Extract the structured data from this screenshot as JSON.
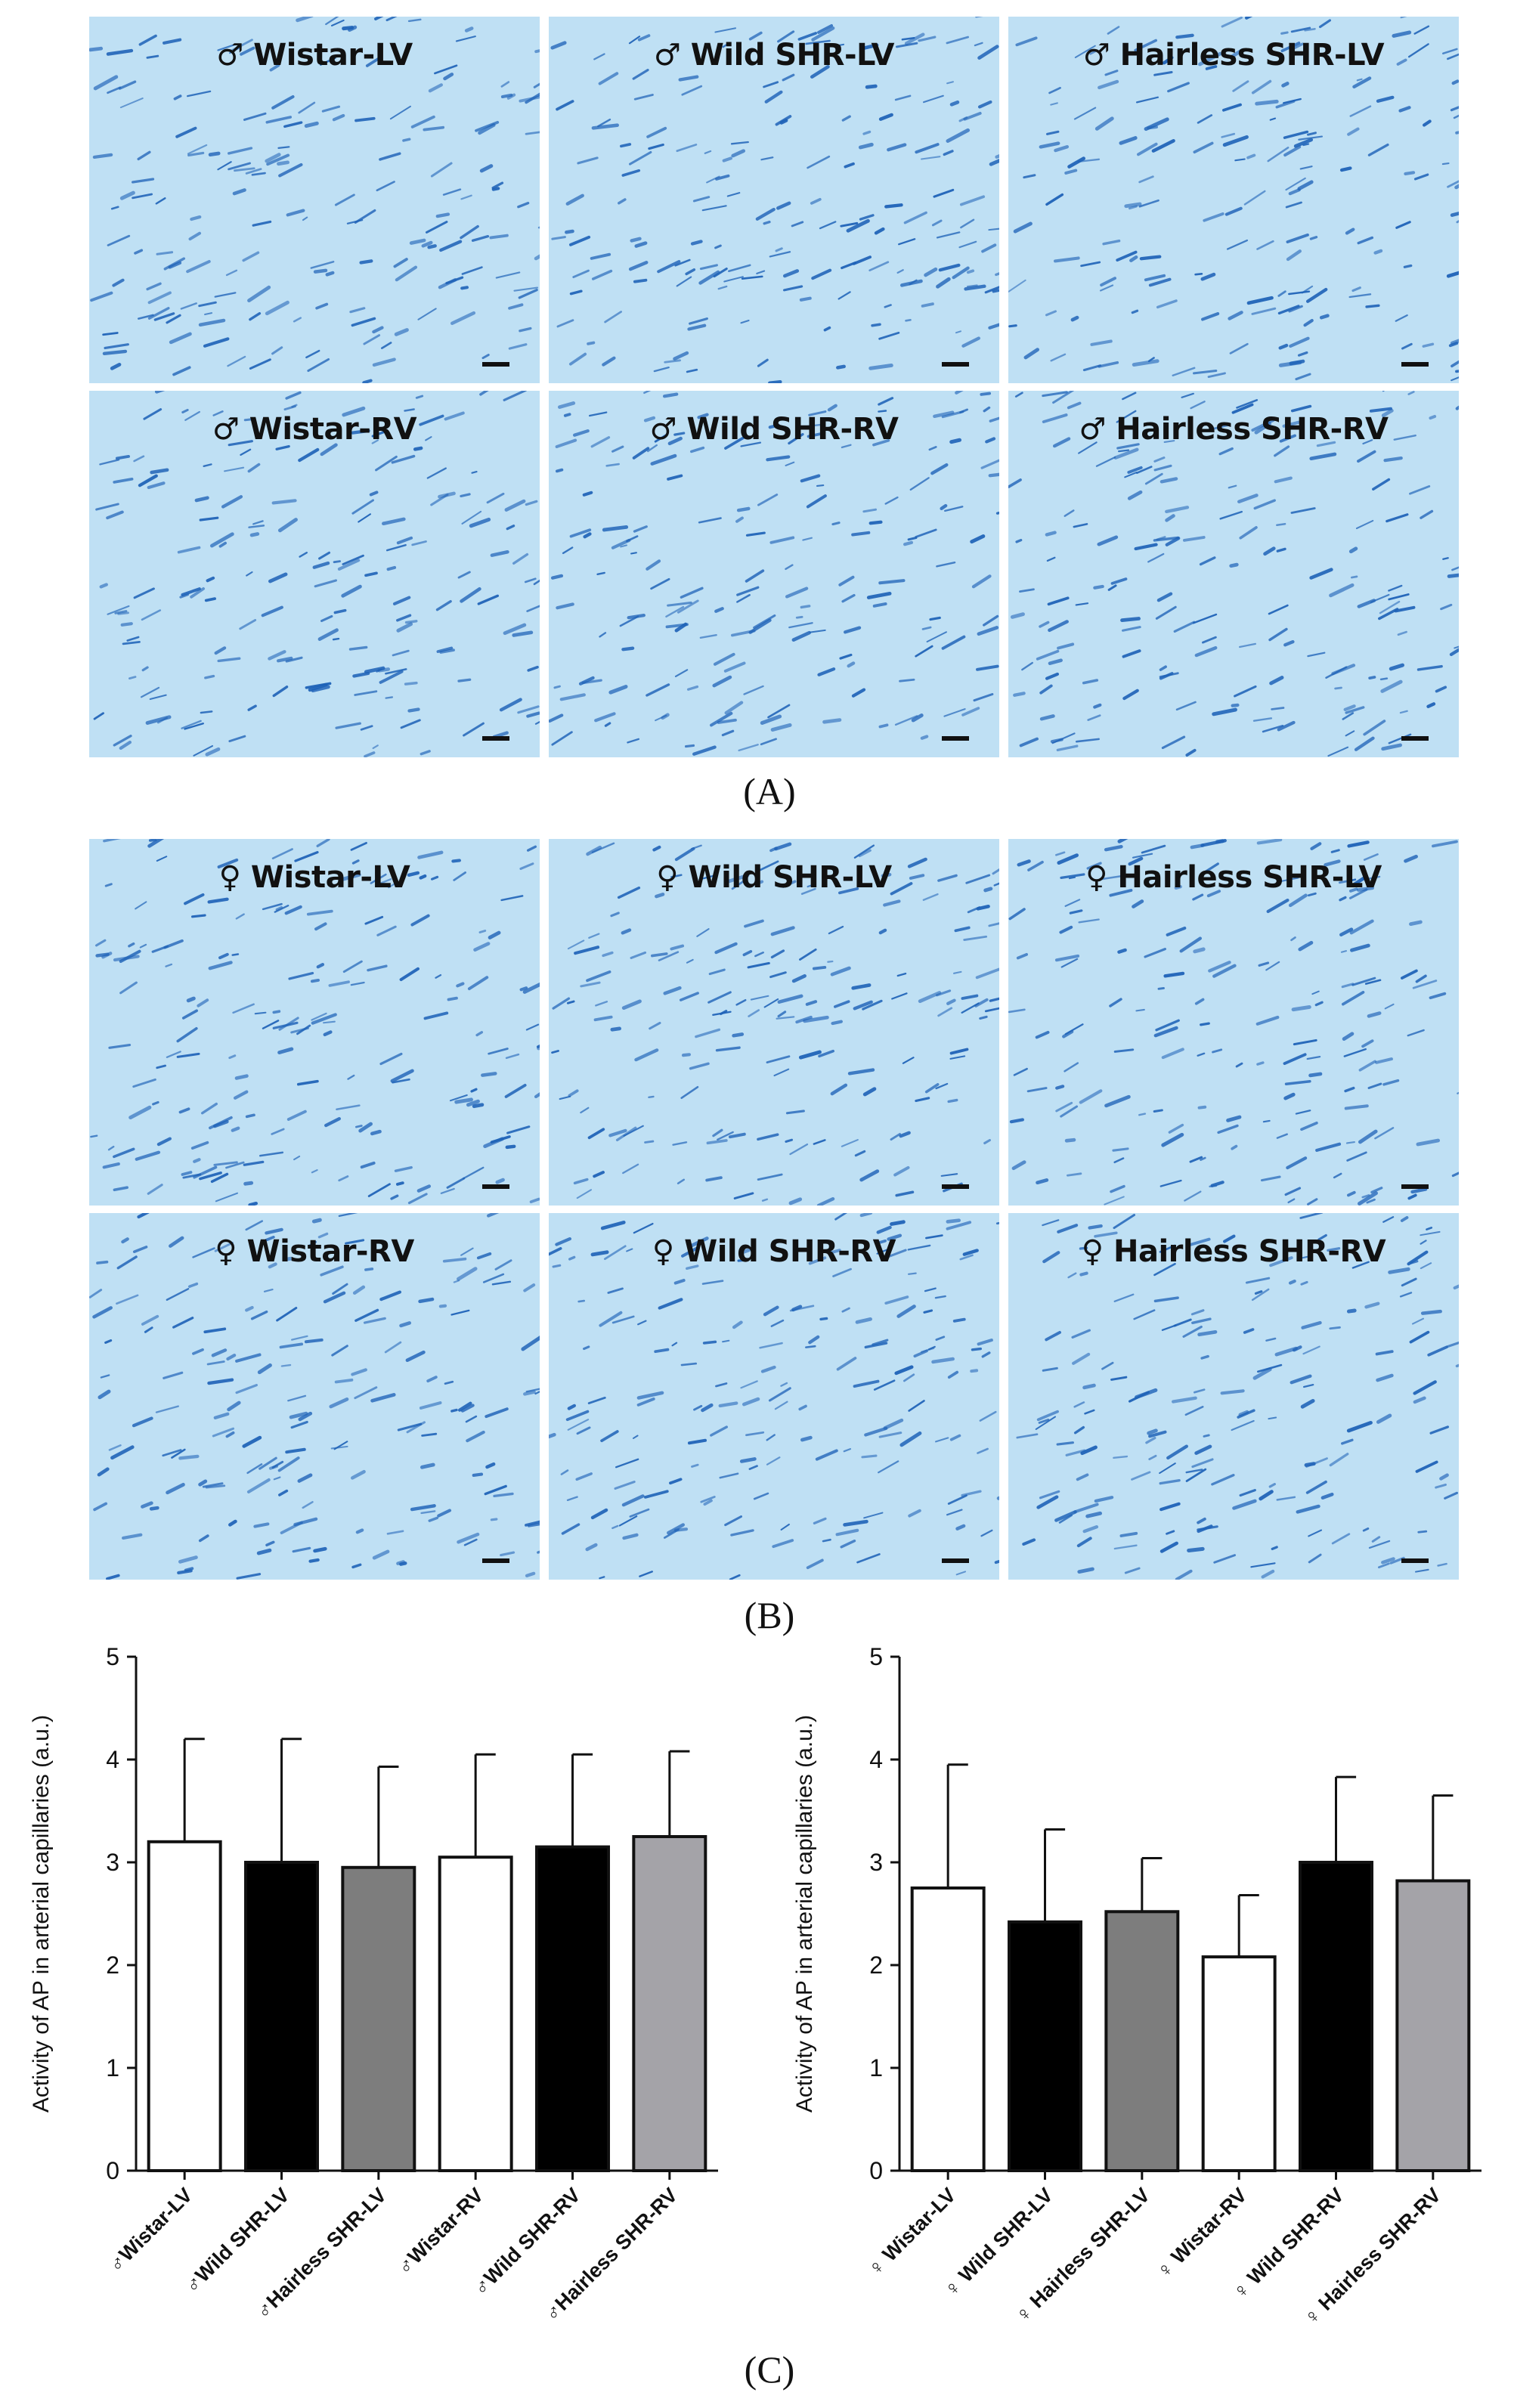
{
  "panels": {
    "a_letter": "(A)",
    "b_letter": "(B)",
    "c_letter": "(C)",
    "a_tiles": [
      {
        "label": "♂ Wistar-LV"
      },
      {
        "label": "♂ Wild SHR-LV"
      },
      {
        "label": "♂ Hairless SHR-LV"
      },
      {
        "label": "♂ Wistar-RV"
      },
      {
        "label": "♂ Wild SHR-RV"
      },
      {
        "label": "♂ Hairless SHR-RV"
      }
    ],
    "b_tiles": [
      {
        "label": "♀ Wistar-LV"
      },
      {
        "label": "♀ Wild SHR-LV"
      },
      {
        "label": "♀ Hairless SHR-LV"
      },
      {
        "label": "♀ Wistar-RV"
      },
      {
        "label": "♀ Wild SHR-RV"
      },
      {
        "label": "♀ Hairless SHR-RV"
      }
    ],
    "tissue_colors": {
      "background": "#bfe0f4",
      "stain": "#1f63b8"
    }
  },
  "chart_data": [
    {
      "type": "bar",
      "ylabel": "Activity of AP in arterial capillaries (a.u.)",
      "ylim": [
        0,
        5
      ],
      "yticks": [
        "0",
        "1",
        "2",
        "3",
        "4",
        "5"
      ],
      "categories": [
        "♂Wistar-LV",
        "♂Wild SHR-LV",
        "♂Hairless SHR-LV",
        "♂Wistar-RV",
        "♂Wild SHR-RV",
        "♂Hairless SHR-RV"
      ],
      "values": [
        3.2,
        3.0,
        2.95,
        3.05,
        3.15,
        3.25
      ],
      "errors": [
        1.0,
        1.2,
        0.98,
        1.0,
        0.9,
        0.83
      ],
      "colors": [
        "#ffffff",
        "#000000",
        "#7d7d7d",
        "#ffffff",
        "#000000",
        "#a4a3a8"
      ]
    },
    {
      "type": "bar",
      "ylabel": "Activity of AP in arterial capillaries (a.u.)",
      "ylim": [
        0,
        5
      ],
      "yticks": [
        "0",
        "1",
        "2",
        "3",
        "4",
        "5"
      ],
      "categories": [
        "♀ Wistar-LV",
        "♀ Wild SHR-LV",
        "♀ Hairless SHR-LV",
        "♀ Wistar-RV",
        "♀ Wild SHR-RV",
        "♀ Hairless SHR-RV"
      ],
      "values": [
        2.75,
        2.42,
        2.52,
        2.08,
        3.0,
        2.82
      ],
      "errors": [
        1.2,
        0.9,
        0.52,
        0.6,
        0.83,
        0.83
      ],
      "colors": [
        "#ffffff",
        "#000000",
        "#7d7d7d",
        "#ffffff",
        "#000000",
        "#a4a3a8"
      ]
    }
  ]
}
